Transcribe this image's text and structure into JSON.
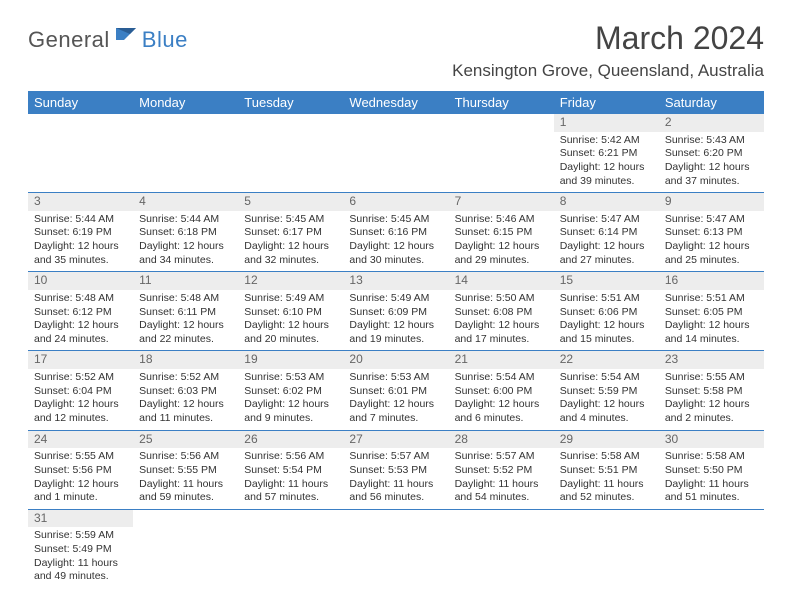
{
  "brand": {
    "part1": "General",
    "part2": "Blue"
  },
  "title": "March 2024",
  "subtitle": "Kensington Grove, Queensland, Australia",
  "colors": {
    "accent": "#3b7fc4",
    "header_bg": "#3b7fc4",
    "daynum_bg": "#ededed"
  },
  "day_headers": [
    "Sunday",
    "Monday",
    "Tuesday",
    "Wednesday",
    "Thursday",
    "Friday",
    "Saturday"
  ],
  "weeks": [
    [
      null,
      null,
      null,
      null,
      null,
      {
        "n": "1",
        "sr": "Sunrise: 5:42 AM",
        "ss": "Sunset: 6:21 PM",
        "d1": "Daylight: 12 hours",
        "d2": "and 39 minutes."
      },
      {
        "n": "2",
        "sr": "Sunrise: 5:43 AM",
        "ss": "Sunset: 6:20 PM",
        "d1": "Daylight: 12 hours",
        "d2": "and 37 minutes."
      }
    ],
    [
      {
        "n": "3",
        "sr": "Sunrise: 5:44 AM",
        "ss": "Sunset: 6:19 PM",
        "d1": "Daylight: 12 hours",
        "d2": "and 35 minutes."
      },
      {
        "n": "4",
        "sr": "Sunrise: 5:44 AM",
        "ss": "Sunset: 6:18 PM",
        "d1": "Daylight: 12 hours",
        "d2": "and 34 minutes."
      },
      {
        "n": "5",
        "sr": "Sunrise: 5:45 AM",
        "ss": "Sunset: 6:17 PM",
        "d1": "Daylight: 12 hours",
        "d2": "and 32 minutes."
      },
      {
        "n": "6",
        "sr": "Sunrise: 5:45 AM",
        "ss": "Sunset: 6:16 PM",
        "d1": "Daylight: 12 hours",
        "d2": "and 30 minutes."
      },
      {
        "n": "7",
        "sr": "Sunrise: 5:46 AM",
        "ss": "Sunset: 6:15 PM",
        "d1": "Daylight: 12 hours",
        "d2": "and 29 minutes."
      },
      {
        "n": "8",
        "sr": "Sunrise: 5:47 AM",
        "ss": "Sunset: 6:14 PM",
        "d1": "Daylight: 12 hours",
        "d2": "and 27 minutes."
      },
      {
        "n": "9",
        "sr": "Sunrise: 5:47 AM",
        "ss": "Sunset: 6:13 PM",
        "d1": "Daylight: 12 hours",
        "d2": "and 25 minutes."
      }
    ],
    [
      {
        "n": "10",
        "sr": "Sunrise: 5:48 AM",
        "ss": "Sunset: 6:12 PM",
        "d1": "Daylight: 12 hours",
        "d2": "and 24 minutes."
      },
      {
        "n": "11",
        "sr": "Sunrise: 5:48 AM",
        "ss": "Sunset: 6:11 PM",
        "d1": "Daylight: 12 hours",
        "d2": "and 22 minutes."
      },
      {
        "n": "12",
        "sr": "Sunrise: 5:49 AM",
        "ss": "Sunset: 6:10 PM",
        "d1": "Daylight: 12 hours",
        "d2": "and 20 minutes."
      },
      {
        "n": "13",
        "sr": "Sunrise: 5:49 AM",
        "ss": "Sunset: 6:09 PM",
        "d1": "Daylight: 12 hours",
        "d2": "and 19 minutes."
      },
      {
        "n": "14",
        "sr": "Sunrise: 5:50 AM",
        "ss": "Sunset: 6:08 PM",
        "d1": "Daylight: 12 hours",
        "d2": "and 17 minutes."
      },
      {
        "n": "15",
        "sr": "Sunrise: 5:51 AM",
        "ss": "Sunset: 6:06 PM",
        "d1": "Daylight: 12 hours",
        "d2": "and 15 minutes."
      },
      {
        "n": "16",
        "sr": "Sunrise: 5:51 AM",
        "ss": "Sunset: 6:05 PM",
        "d1": "Daylight: 12 hours",
        "d2": "and 14 minutes."
      }
    ],
    [
      {
        "n": "17",
        "sr": "Sunrise: 5:52 AM",
        "ss": "Sunset: 6:04 PM",
        "d1": "Daylight: 12 hours",
        "d2": "and 12 minutes."
      },
      {
        "n": "18",
        "sr": "Sunrise: 5:52 AM",
        "ss": "Sunset: 6:03 PM",
        "d1": "Daylight: 12 hours",
        "d2": "and 11 minutes."
      },
      {
        "n": "19",
        "sr": "Sunrise: 5:53 AM",
        "ss": "Sunset: 6:02 PM",
        "d1": "Daylight: 12 hours",
        "d2": "and 9 minutes."
      },
      {
        "n": "20",
        "sr": "Sunrise: 5:53 AM",
        "ss": "Sunset: 6:01 PM",
        "d1": "Daylight: 12 hours",
        "d2": "and 7 minutes."
      },
      {
        "n": "21",
        "sr": "Sunrise: 5:54 AM",
        "ss": "Sunset: 6:00 PM",
        "d1": "Daylight: 12 hours",
        "d2": "and 6 minutes."
      },
      {
        "n": "22",
        "sr": "Sunrise: 5:54 AM",
        "ss": "Sunset: 5:59 PM",
        "d1": "Daylight: 12 hours",
        "d2": "and 4 minutes."
      },
      {
        "n": "23",
        "sr": "Sunrise: 5:55 AM",
        "ss": "Sunset: 5:58 PM",
        "d1": "Daylight: 12 hours",
        "d2": "and 2 minutes."
      }
    ],
    [
      {
        "n": "24",
        "sr": "Sunrise: 5:55 AM",
        "ss": "Sunset: 5:56 PM",
        "d1": "Daylight: 12 hours",
        "d2": "and 1 minute."
      },
      {
        "n": "25",
        "sr": "Sunrise: 5:56 AM",
        "ss": "Sunset: 5:55 PM",
        "d1": "Daylight: 11 hours",
        "d2": "and 59 minutes."
      },
      {
        "n": "26",
        "sr": "Sunrise: 5:56 AM",
        "ss": "Sunset: 5:54 PM",
        "d1": "Daylight: 11 hours",
        "d2": "and 57 minutes."
      },
      {
        "n": "27",
        "sr": "Sunrise: 5:57 AM",
        "ss": "Sunset: 5:53 PM",
        "d1": "Daylight: 11 hours",
        "d2": "and 56 minutes."
      },
      {
        "n": "28",
        "sr": "Sunrise: 5:57 AM",
        "ss": "Sunset: 5:52 PM",
        "d1": "Daylight: 11 hours",
        "d2": "and 54 minutes."
      },
      {
        "n": "29",
        "sr": "Sunrise: 5:58 AM",
        "ss": "Sunset: 5:51 PM",
        "d1": "Daylight: 11 hours",
        "d2": "and 52 minutes."
      },
      {
        "n": "30",
        "sr": "Sunrise: 5:58 AM",
        "ss": "Sunset: 5:50 PM",
        "d1": "Daylight: 11 hours",
        "d2": "and 51 minutes."
      }
    ],
    [
      {
        "n": "31",
        "sr": "Sunrise: 5:59 AM",
        "ss": "Sunset: 5:49 PM",
        "d1": "Daylight: 11 hours",
        "d2": "and 49 minutes."
      },
      null,
      null,
      null,
      null,
      null,
      null
    ]
  ]
}
